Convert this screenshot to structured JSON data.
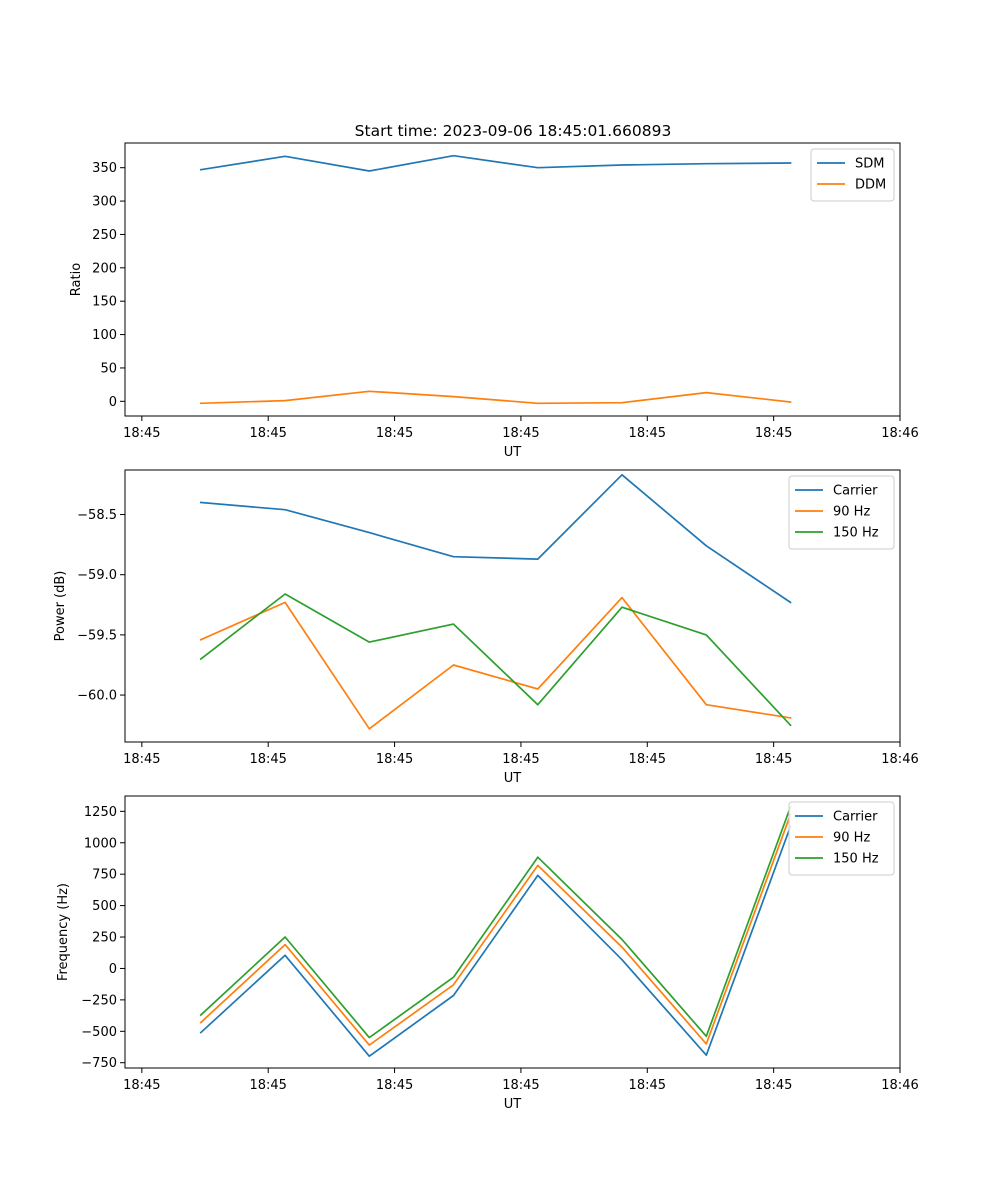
{
  "figure_title": "Start time: 2023-09-06 18:45:01.660893",
  "chart_data": [
    {
      "type": "line",
      "title": "Start time: 2023-09-06 18:45:01.660893",
      "xlabel": "UT",
      "ylabel": "Ratio",
      "xlim": [
        -0.9,
        8.3
      ],
      "ylim": [
        -22,
        387
      ],
      "x_ticks": [
        -0.7,
        0.8,
        2.3,
        3.8,
        5.3,
        6.8,
        8.3
      ],
      "x_tick_labels": [
        "18:45",
        "18:45",
        "18:45",
        "18:45",
        "18:45",
        "18:45",
        "18:46"
      ],
      "y_ticks": [
        0,
        50,
        100,
        150,
        200,
        250,
        300,
        350
      ],
      "y_tick_labels": [
        "0",
        "50",
        "100",
        "150",
        "200",
        "250",
        "300",
        "350"
      ],
      "legend_position": "top-right",
      "x": [
        0,
        1,
        2,
        3,
        4,
        5,
        6,
        7
      ],
      "series": [
        {
          "name": "SDM",
          "color": "#1f77b4",
          "values": [
            347,
            367,
            345,
            368,
            350,
            354,
            356,
            357
          ]
        },
        {
          "name": "DDM",
          "color": "#ff7f0e",
          "values": [
            -3,
            1,
            15,
            7,
            -3,
            -2,
            13,
            -1
          ]
        }
      ]
    },
    {
      "type": "line",
      "title": "",
      "xlabel": "UT",
      "ylabel": "Power (dB)",
      "xlim": [
        -0.9,
        8.3
      ],
      "ylim": [
        -60.39,
        -58.13
      ],
      "x_ticks": [
        -0.7,
        0.8,
        2.3,
        3.8,
        5.3,
        6.8,
        8.3
      ],
      "x_tick_labels": [
        "18:45",
        "18:45",
        "18:45",
        "18:45",
        "18:45",
        "18:45",
        "18:46"
      ],
      "y_ticks": [
        -60.0,
        -59.5,
        -59.0,
        -58.5
      ],
      "y_tick_labels": [
        "−60.0",
        "−59.5",
        "−59.0",
        "−58.5"
      ],
      "legend_position": "top-right",
      "x": [
        0,
        1,
        2,
        3,
        4,
        5,
        6,
        7
      ],
      "series": [
        {
          "name": "Carrier",
          "color": "#1f77b4",
          "values": [
            -58.4,
            -58.46,
            -58.65,
            -58.85,
            -58.87,
            -58.17,
            -58.76,
            -59.23
          ]
        },
        {
          "name": "90 Hz",
          "color": "#ff7f0e",
          "values": [
            -59.54,
            -59.23,
            -60.28,
            -59.75,
            -59.95,
            -59.19,
            -60.08,
            -60.19
          ]
        },
        {
          "name": "150 Hz",
          "color": "#2ca02c",
          "values": [
            -59.7,
            -59.16,
            -59.56,
            -59.41,
            -60.08,
            -59.27,
            -59.5,
            -60.25
          ]
        }
      ]
    },
    {
      "type": "line",
      "title": "",
      "xlabel": "UT",
      "ylabel": "Frequency (Hz)",
      "xlim": [
        -0.9,
        8.3
      ],
      "ylim": [
        -792,
        1372
      ],
      "x_ticks": [
        -0.7,
        0.8,
        2.3,
        3.8,
        5.3,
        6.8,
        8.3
      ],
      "x_tick_labels": [
        "18:45",
        "18:45",
        "18:45",
        "18:45",
        "18:45",
        "18:45",
        "18:46"
      ],
      "y_ticks": [
        -750,
        -500,
        -250,
        0,
        250,
        500,
        750,
        1000,
        1250
      ],
      "y_tick_labels": [
        "−750",
        "−500",
        "−250",
        "0",
        "250",
        "500",
        "750",
        "1000",
        "1250"
      ],
      "legend_position": "top-right",
      "x": [
        0,
        1,
        2,
        3,
        4,
        5,
        6,
        7
      ],
      "series": [
        {
          "name": "Carrier",
          "color": "#1f77b4",
          "values": [
            -510,
            105,
            -698,
            -215,
            740,
            70,
            -690,
            1130
          ]
        },
        {
          "name": "90 Hz",
          "color": "#ff7f0e",
          "values": [
            -430,
            190,
            -610,
            -130,
            820,
            170,
            -600,
            1225
          ]
        },
        {
          "name": "150 Hz",
          "color": "#2ca02c",
          "values": [
            -370,
            250,
            -550,
            -70,
            885,
            230,
            -540,
            1285
          ]
        }
      ]
    }
  ]
}
